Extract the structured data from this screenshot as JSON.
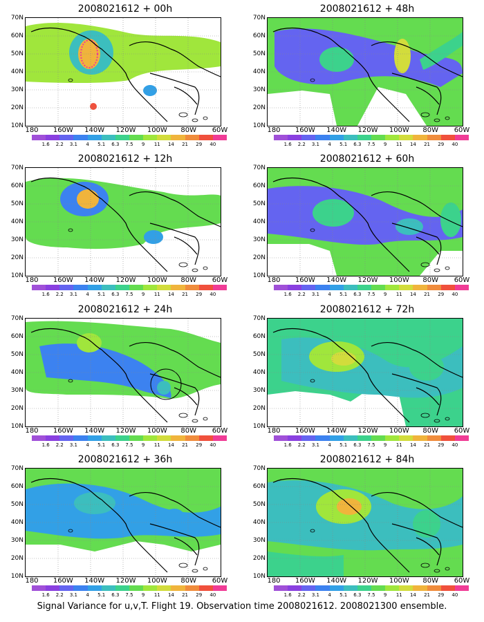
{
  "caption": "Signal Variance for u,v,T. Flight 19. Observation time 2008021612. 2008021300 ensemble.",
  "lat_labels": [
    "70N",
    "60N",
    "50N",
    "40N",
    "30N",
    "20N",
    "10N"
  ],
  "lon_labels": [
    "180",
    "160W",
    "140W",
    "120W",
    "100W",
    "80W",
    "60W"
  ],
  "colorbar": {
    "labels": [
      "1.6",
      "2.2",
      "3.1",
      "4",
      "5.1",
      "6.3",
      "7.5",
      "9",
      "11",
      "14",
      "21",
      "29",
      "40"
    ],
    "colors": [
      "#a050d8",
      "#8a40e0",
      "#6464f0",
      "#3c82f0",
      "#32a0e6",
      "#3cbebe",
      "#3cd28c",
      "#64dc50",
      "#a0e63c",
      "#d2dc3c",
      "#f0b43c",
      "#f08c3c",
      "#f0503c",
      "#f03c96"
    ]
  },
  "panels": [
    {
      "title": "2008021612 + 00h"
    },
    {
      "title": "2008021612 + 48h"
    },
    {
      "title": "2008021612 + 12h"
    },
    {
      "title": "2008021612 + 60h"
    },
    {
      "title": "2008021612 + 24h"
    },
    {
      "title": "2008021612 + 72h"
    },
    {
      "title": "2008021612 + 36h"
    },
    {
      "title": "2008021612 + 84h"
    }
  ]
}
